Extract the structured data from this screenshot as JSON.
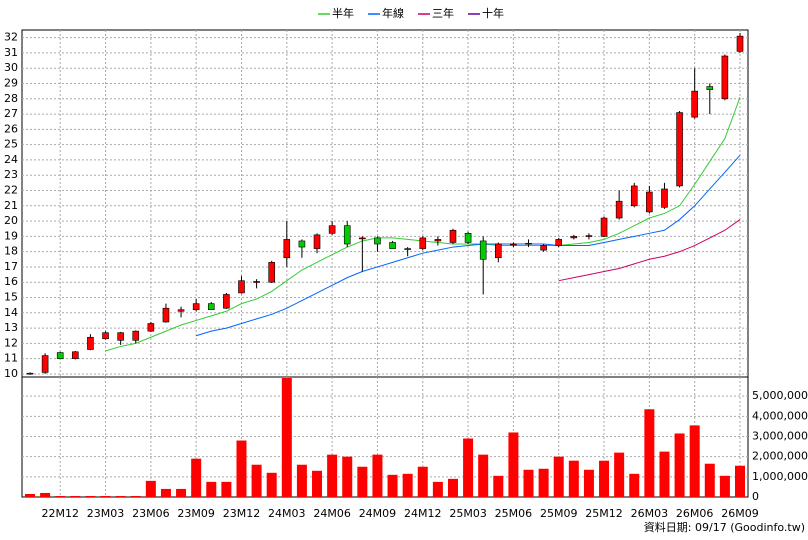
{
  "chart_data": {
    "type": "candlestick",
    "categories": [
      null,
      null,
      "22M12",
      null,
      null,
      "23M03",
      null,
      null,
      "23M06",
      null,
      null,
      "23M09",
      null,
      null,
      "23M12",
      null,
      null,
      "24M03",
      null,
      null,
      "24M06",
      null,
      null,
      "24M09",
      null,
      null,
      "24M12",
      null,
      null,
      "25M03",
      null,
      null,
      "25M06",
      null,
      null,
      "25M09",
      null,
      null,
      "25M12",
      null,
      null,
      "26M03",
      null,
      null,
      "26M06",
      null,
      null,
      "26M09"
    ],
    "open": [
      10,
      10.1,
      11.4,
      11.0,
      11.6,
      12.3,
      12.2,
      12.2,
      12.8,
      13.4,
      14.1,
      14.2,
      14.6,
      14.3,
      15.3,
      16.0,
      16.0,
      17.6,
      18.7,
      18.2,
      19.2,
      19.7,
      18.85,
      18.9,
      18.6,
      18.2,
      18.2,
      18.7,
      18.6,
      19.2,
      18.7,
      17.6,
      18.45,
      18.5,
      18.1,
      18.4,
      18.9,
      19.0,
      19.0,
      20.2,
      21.0,
      20.6,
      20.9,
      22.3,
      26.8,
      28.8,
      28.0,
      31.1
    ],
    "high": [
      10.1,
      11.35,
      11.45,
      11.5,
      12.6,
      12.8,
      12.75,
      12.85,
      13.4,
      14.6,
      14.4,
      14.9,
      14.7,
      15.3,
      16.4,
      16.2,
      17.4,
      20.0,
      18.8,
      19.2,
      20.0,
      20.0,
      19.0,
      19.0,
      18.7,
      18.3,
      19.0,
      19.0,
      19.5,
      19.3,
      19.0,
      18.6,
      18.6,
      18.8,
      18.5,
      18.9,
      19.1,
      19.2,
      20.3,
      22.0,
      22.5,
      22.3,
      22.5,
      27.2,
      30.0,
      29.0,
      30.9,
      32.3
    ],
    "low": [
      9.95,
      10.0,
      11.0,
      10.95,
      11.55,
      12.25,
      11.9,
      12.0,
      12.75,
      13.35,
      13.7,
      14.1,
      14.2,
      14.25,
      15.25,
      15.6,
      15.95,
      17.0,
      17.6,
      17.9,
      19.1,
      18.3,
      16.7,
      18.0,
      18.2,
      17.7,
      18.1,
      18.4,
      18.5,
      18.5,
      15.2,
      17.3,
      18.3,
      18.3,
      18.0,
      18.3,
      18.8,
      18.8,
      18.95,
      20.1,
      20.9,
      20.5,
      20.8,
      22.2,
      26.7,
      27.0,
      27.9,
      31.0
    ],
    "close": [
      10.05,
      11.2,
      11.0,
      11.45,
      12.4,
      12.7,
      12.7,
      12.8,
      13.3,
      14.3,
      14.2,
      14.6,
      14.2,
      15.2,
      16.1,
      16.05,
      17.3,
      18.8,
      18.3,
      19.1,
      19.7,
      18.5,
      18.9,
      18.5,
      18.2,
      18.15,
      18.9,
      18.8,
      19.4,
      18.6,
      17.5,
      18.5,
      18.5,
      18.55,
      18.4,
      18.8,
      19.0,
      19.05,
      20.2,
      21.3,
      22.3,
      21.9,
      22.1,
      27.1,
      28.5,
      28.6,
      30.8,
      32.1
    ],
    "up_color": "#ff0000",
    "down_color": "#00cc00",
    "series": [
      {
        "name": "半年",
        "color": "#33cc33",
        "values": [
          null,
          null,
          null,
          null,
          null,
          11.5,
          11.8,
          12.0,
          12.4,
          12.8,
          13.2,
          13.5,
          13.8,
          14.1,
          14.6,
          14.9,
          15.4,
          16.1,
          16.8,
          17.3,
          17.8,
          18.3,
          18.7,
          18.9,
          18.9,
          18.8,
          18.7,
          18.6,
          18.5,
          18.5,
          18.5,
          18.4,
          18.4,
          18.4,
          18.4,
          18.4,
          18.5,
          18.6,
          18.8,
          19.2,
          19.7,
          20.2,
          20.5,
          21.0,
          22.4,
          23.9,
          25.4,
          28.1
        ]
      },
      {
        "name": "年線",
        "color": "#0066ff",
        "values": [
          null,
          null,
          null,
          null,
          null,
          null,
          null,
          null,
          null,
          null,
          null,
          12.5,
          12.8,
          13.0,
          13.3,
          13.6,
          13.9,
          14.3,
          14.8,
          15.3,
          15.8,
          16.3,
          16.7,
          17.0,
          17.3,
          17.6,
          17.9,
          18.1,
          18.3,
          18.4,
          18.5,
          18.5,
          18.5,
          18.5,
          18.5,
          18.4,
          18.4,
          18.4,
          18.6,
          18.8,
          19.0,
          19.2,
          19.4,
          20.1,
          21.0,
          22.1,
          23.2,
          24.3
        ]
      },
      {
        "name": "三年",
        "color": "#cc0066",
        "values": [
          null,
          null,
          null,
          null,
          null,
          null,
          null,
          null,
          null,
          null,
          null,
          null,
          null,
          null,
          null,
          null,
          null,
          null,
          null,
          null,
          null,
          null,
          null,
          null,
          null,
          null,
          null,
          null,
          null,
          null,
          null,
          null,
          null,
          null,
          null,
          16.1,
          16.3,
          16.5,
          16.7,
          16.9,
          17.2,
          17.5,
          17.7,
          18.0,
          18.4,
          18.9,
          19.4,
          20.1
        ]
      },
      {
        "name": "十年",
        "color": "#660099",
        "values": [
          null,
          null,
          null,
          null,
          null,
          null,
          null,
          null,
          null,
          null,
          null,
          null,
          null,
          null,
          null,
          null,
          null,
          null,
          null,
          null,
          null,
          null,
          null,
          null,
          null,
          null,
          null,
          null,
          null,
          null,
          null,
          null,
          null,
          null,
          null,
          null,
          null,
          null,
          null,
          null,
          null,
          null,
          null,
          null,
          null,
          null,
          null,
          null
        ]
      }
    ],
    "ylim": [
      9.8,
      32.5
    ],
    "yticks": [
      10,
      11,
      12,
      13,
      14,
      15,
      16,
      17,
      18,
      19,
      20,
      21,
      22,
      23,
      24,
      25,
      26,
      27,
      28,
      29,
      30,
      31,
      32
    ],
    "grid": true,
    "legend": "top",
    "volume": {
      "type": "bar",
      "color": "#ff0000",
      "values": [
        150000,
        200000,
        50000,
        50000,
        50000,
        50000,
        50000,
        50000,
        800000,
        400000,
        400000,
        1900000,
        750000,
        750000,
        2800000,
        1600000,
        1200000,
        5900000,
        1600000,
        1300000,
        2100000,
        2000000,
        1500000,
        2100000,
        1100000,
        1150000,
        1500000,
        750000,
        900000,
        2900000,
        2100000,
        1050000,
        3200000,
        1350000,
        1400000,
        2000000,
        1800000,
        1350000,
        1800000,
        2200000,
        1150000,
        4350000,
        2250000,
        3150000,
        3550000,
        1650000,
        1050000,
        1550000
      ],
      "ylim": [
        0,
        5950000
      ],
      "yticks": [
        0,
        {
          "value": 1000000,
          "label": "1,000,000"
        },
        {
          "value": 2000000,
          "label": "2,000,000"
        },
        {
          "value": 3000000,
          "label": "3,000,000"
        },
        {
          "value": 4000000,
          "label": "4,000,000"
        },
        {
          "value": 5000000,
          "label": "5,000,000"
        }
      ]
    },
    "footnote": "資料日期: 09/17  (Goodinfo.tw)"
  }
}
